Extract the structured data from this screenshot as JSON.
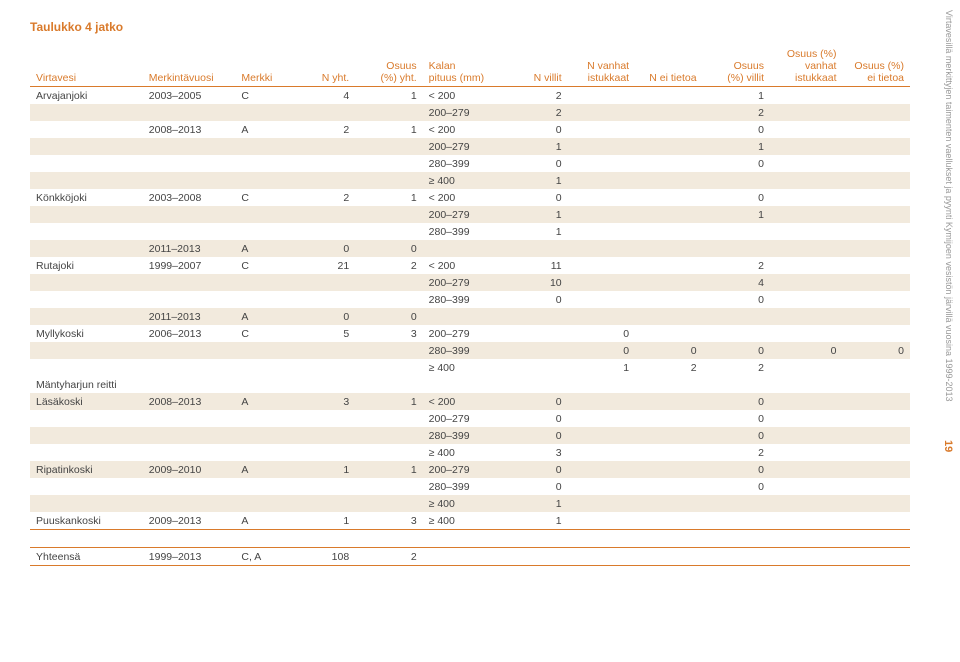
{
  "title": "Taulukko 4 jatko",
  "sidetext": "Virtavesillä merkittyjen taimenten vaellukset ja pyynti Kymijoen vesistön järvillä vuosina 1999-2013",
  "pagenum": "19",
  "headers": {
    "virtavesi": "Virtavesi",
    "merkintavuosi": "Merkintävuosi",
    "merkki": "Merkki",
    "nyht": "N yht.",
    "osuus_yht_1": "Osuus",
    "osuus_yht_2": "(%) yht.",
    "kalan_1": "Kalan",
    "kalan_2": "pituus (mm)",
    "nvillit": "N villit",
    "nvanhat_1": "N vanhat",
    "nvanhat_2": "istukkaat",
    "nei": "N ei tietoa",
    "ovillit_1": "Osuus",
    "ovillit_2": "(%) villit",
    "ovanhat_1": "Osuus (%)",
    "ovanhat_2": "vanhat",
    "ovanhat_3": "istukkaat",
    "oei_1": "Osuus (%)",
    "oei_2": "ei tietoa"
  },
  "rows": [
    {
      "z": 0,
      "virta": "Arvajanjoki",
      "merk": "2003–2005",
      "m": "C",
      "nyht": "4",
      "osuus": "1",
      "kalan": "< 200",
      "nvillit": "2",
      "nvanhat": "",
      "nei": "",
      "ovillit": "1",
      "ovanhat": "",
      "oei": ""
    },
    {
      "z": 1,
      "virta": "",
      "merk": "",
      "m": "",
      "nyht": "",
      "osuus": "",
      "kalan": "200–279",
      "nvillit": "2",
      "nvanhat": "",
      "nei": "",
      "ovillit": "2",
      "ovanhat": "",
      "oei": ""
    },
    {
      "z": 0,
      "virta": "",
      "merk": "2008–2013",
      "m": "A",
      "nyht": "2",
      "osuus": "1",
      "kalan": "< 200",
      "nvillit": "0",
      "nvanhat": "",
      "nei": "",
      "ovillit": "0",
      "ovanhat": "",
      "oei": ""
    },
    {
      "z": 1,
      "virta": "",
      "merk": "",
      "m": "",
      "nyht": "",
      "osuus": "",
      "kalan": "200–279",
      "nvillit": "1",
      "nvanhat": "",
      "nei": "",
      "ovillit": "1",
      "ovanhat": "",
      "oei": ""
    },
    {
      "z": 0,
      "virta": "",
      "merk": "",
      "m": "",
      "nyht": "",
      "osuus": "",
      "kalan": "280–399",
      "nvillit": "0",
      "nvanhat": "",
      "nei": "",
      "ovillit": "0",
      "ovanhat": "",
      "oei": ""
    },
    {
      "z": 1,
      "virta": "",
      "merk": "",
      "m": "",
      "nyht": "",
      "osuus": "",
      "kalan": "≥ 400",
      "nvillit": "1",
      "nvanhat": "",
      "nei": "",
      "ovillit": "",
      "ovanhat": "",
      "oei": ""
    },
    {
      "z": 0,
      "virta": "Könkköjoki",
      "merk": "2003–2008",
      "m": "C",
      "nyht": "2",
      "osuus": "1",
      "kalan": "< 200",
      "nvillit": "0",
      "nvanhat": "",
      "nei": "",
      "ovillit": "0",
      "ovanhat": "",
      "oei": ""
    },
    {
      "z": 1,
      "virta": "",
      "merk": "",
      "m": "",
      "nyht": "",
      "osuus": "",
      "kalan": "200–279",
      "nvillit": "1",
      "nvanhat": "",
      "nei": "",
      "ovillit": "1",
      "ovanhat": "",
      "oei": ""
    },
    {
      "z": 0,
      "virta": "",
      "merk": "",
      "m": "",
      "nyht": "",
      "osuus": "",
      "kalan": "280–399",
      "nvillit": "1",
      "nvanhat": "",
      "nei": "",
      "ovillit": "",
      "ovanhat": "",
      "oei": ""
    },
    {
      "z": 1,
      "virta": "",
      "merk": "2011–2013",
      "m": "A",
      "nyht": "0",
      "osuus": "0",
      "kalan": "",
      "nvillit": "",
      "nvanhat": "",
      "nei": "",
      "ovillit": "",
      "ovanhat": "",
      "oei": ""
    },
    {
      "z": 0,
      "virta": "Rutajoki",
      "merk": "1999–2007",
      "m": "C",
      "nyht": "21",
      "osuus": "2",
      "kalan": "< 200",
      "nvillit": "11",
      "nvanhat": "",
      "nei": "",
      "ovillit": "2",
      "ovanhat": "",
      "oei": ""
    },
    {
      "z": 1,
      "virta": "",
      "merk": "",
      "m": "",
      "nyht": "",
      "osuus": "",
      "kalan": "200–279",
      "nvillit": "10",
      "nvanhat": "",
      "nei": "",
      "ovillit": "4",
      "ovanhat": "",
      "oei": ""
    },
    {
      "z": 0,
      "virta": "",
      "merk": "",
      "m": "",
      "nyht": "",
      "osuus": "",
      "kalan": "280–399",
      "nvillit": "0",
      "nvanhat": "",
      "nei": "",
      "ovillit": "0",
      "ovanhat": "",
      "oei": ""
    },
    {
      "z": 1,
      "virta": "",
      "merk": "2011–2013",
      "m": "A",
      "nyht": "0",
      "osuus": "0",
      "kalan": "",
      "nvillit": "",
      "nvanhat": "",
      "nei": "",
      "ovillit": "",
      "ovanhat": "",
      "oei": ""
    },
    {
      "z": 0,
      "virta": "Myllykoski",
      "merk": "2006–2013",
      "m": "C",
      "nyht": "5",
      "osuus": "3",
      "kalan": "200–279",
      "nvillit": "",
      "nvanhat": "0",
      "nei": "",
      "ovillit": "",
      "ovanhat": "",
      "oei": ""
    },
    {
      "z": 1,
      "virta": "",
      "merk": "",
      "m": "",
      "nyht": "",
      "osuus": "",
      "kalan": "280–399",
      "nvillit": "",
      "nvanhat": "0",
      "nei": "0",
      "ovillit": "0",
      "ovanhat": "0",
      "oei": "0"
    },
    {
      "z": 0,
      "virta": "",
      "merk": "",
      "m": "",
      "nyht": "",
      "osuus": "",
      "kalan": "≥ 400",
      "nvillit": "",
      "nvanhat": "1",
      "nei": "2",
      "ovillit": "2",
      "ovanhat": "",
      "oei": ""
    },
    {
      "z": 0,
      "virta": "Mäntyharjun reitti",
      "merk": "",
      "m": "",
      "nyht": "",
      "osuus": "",
      "kalan": "",
      "nvillit": "",
      "nvanhat": "",
      "nei": "",
      "ovillit": "",
      "ovanhat": "",
      "oei": ""
    },
    {
      "z": 1,
      "virta": "Läsäkoski",
      "merk": "2008–2013",
      "m": "A",
      "nyht": "3",
      "osuus": "1",
      "kalan": "< 200",
      "nvillit": "0",
      "nvanhat": "",
      "nei": "",
      "ovillit": "0",
      "ovanhat": "",
      "oei": ""
    },
    {
      "z": 0,
      "virta": "",
      "merk": "",
      "m": "",
      "nyht": "",
      "osuus": "",
      "kalan": "200–279",
      "nvillit": "0",
      "nvanhat": "",
      "nei": "",
      "ovillit": "0",
      "ovanhat": "",
      "oei": ""
    },
    {
      "z": 1,
      "virta": "",
      "merk": "",
      "m": "",
      "nyht": "",
      "osuus": "",
      "kalan": "280–399",
      "nvillit": "0",
      "nvanhat": "",
      "nei": "",
      "ovillit": "0",
      "ovanhat": "",
      "oei": ""
    },
    {
      "z": 0,
      "virta": "",
      "merk": "",
      "m": "",
      "nyht": "",
      "osuus": "",
      "kalan": "≥ 400",
      "nvillit": "3",
      "nvanhat": "",
      "nei": "",
      "ovillit": "2",
      "ovanhat": "",
      "oei": ""
    },
    {
      "z": 1,
      "virta": "Ripatinkoski",
      "merk": "2009–2010",
      "m": "A",
      "nyht": "1",
      "osuus": "1",
      "kalan": "200–279",
      "nvillit": "0",
      "nvanhat": "",
      "nei": "",
      "ovillit": "0",
      "ovanhat": "",
      "oei": ""
    },
    {
      "z": 0,
      "virta": "",
      "merk": "",
      "m": "",
      "nyht": "",
      "osuus": "",
      "kalan": "280–399",
      "nvillit": "0",
      "nvanhat": "",
      "nei": "",
      "ovillit": "0",
      "ovanhat": "",
      "oei": ""
    },
    {
      "z": 1,
      "virta": "",
      "merk": "",
      "m": "",
      "nyht": "",
      "osuus": "",
      "kalan": "≥ 400",
      "nvillit": "1",
      "nvanhat": "",
      "nei": "",
      "ovillit": "",
      "ovanhat": "",
      "oei": ""
    },
    {
      "z": 0,
      "virta": "Puuskankoski",
      "merk": "2009–2013",
      "m": "A",
      "nyht": "1",
      "osuus": "3",
      "kalan": "≥ 400",
      "nvillit": "1",
      "nvanhat": "",
      "nei": "",
      "ovillit": "",
      "ovanhat": "",
      "oei": "",
      "divbot": 1
    }
  ],
  "footer": {
    "virta": "Yhteensä",
    "merk": "1999–2013",
    "m": "C, A",
    "nyht": "108",
    "osuus": "2"
  }
}
